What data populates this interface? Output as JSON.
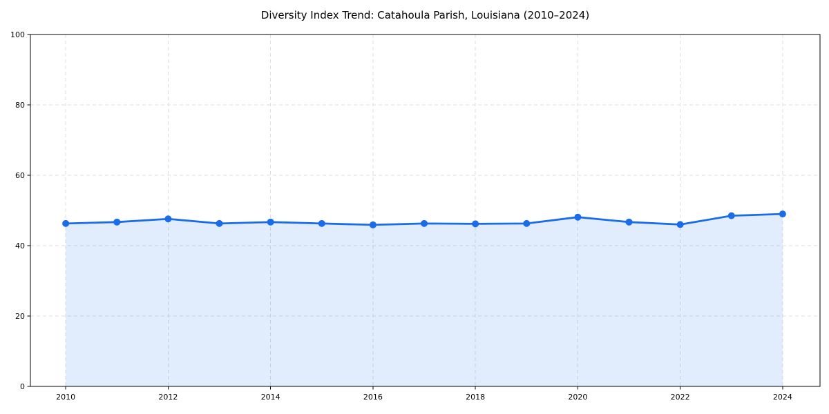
{
  "chart_data": {
    "type": "line",
    "title": "Diversity Index Trend: Catahoula Parish, Louisiana (2010–2024)",
    "xlabel": "",
    "ylabel": "",
    "x": [
      2010,
      2011,
      2012,
      2013,
      2014,
      2015,
      2016,
      2017,
      2018,
      2019,
      2020,
      2021,
      2022,
      2023,
      2024
    ],
    "series": [
      {
        "name": "Diversity Index",
        "values": [
          46.3,
          46.7,
          47.6,
          46.3,
          46.7,
          46.3,
          45.9,
          46.3,
          46.2,
          46.3,
          48.1,
          46.7,
          46.0,
          48.5,
          49.0
        ]
      }
    ],
    "x_ticks": [
      2010,
      2012,
      2014,
      2016,
      2018,
      2020,
      2022,
      2024
    ],
    "y_ticks": [
      0,
      20,
      40,
      60,
      80,
      100
    ],
    "xlim": [
      2009.31,
      2024.73
    ],
    "ylim": [
      0,
      100
    ],
    "grid": true,
    "grid_style": "dashed",
    "legend_position": "none",
    "colors": {
      "line": "#1a6ce8",
      "marker": "#1a6ce8",
      "fill": "#1a6ce8",
      "grid": "#dddddd",
      "axis": "#000000",
      "tick_label": "#000000",
      "background": "#ffffff"
    },
    "fill_opacity": 0.13,
    "line_width": 2.8,
    "marker_radius": 5
  }
}
